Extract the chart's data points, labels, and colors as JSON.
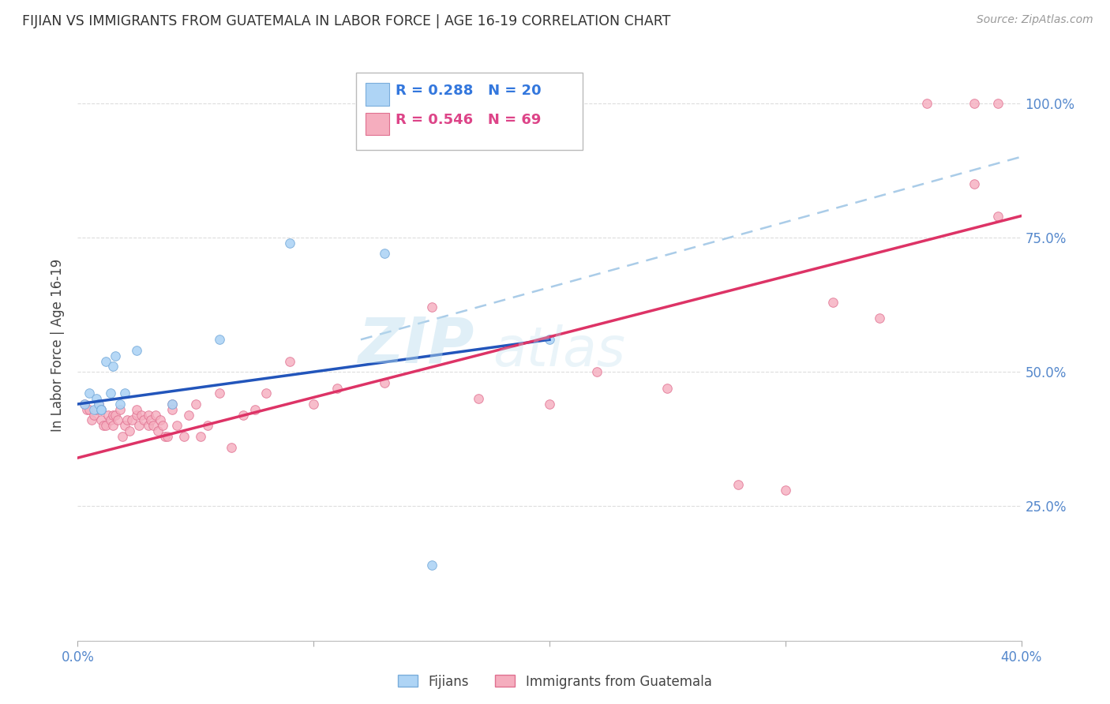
{
  "title": "FIJIAN VS IMMIGRANTS FROM GUATEMALA IN LABOR FORCE | AGE 16-19 CORRELATION CHART",
  "source": "Source: ZipAtlas.com",
  "ylabel": "In Labor Force | Age 16-19",
  "xmin": 0.0,
  "xmax": 0.4,
  "ymin": 0.0,
  "ymax": 1.1,
  "yticks": [
    0.0,
    0.25,
    0.5,
    0.75,
    1.0
  ],
  "ytick_labels": [
    "",
    "25.0%",
    "50.0%",
    "75.0%",
    "100.0%"
  ],
  "xticks": [
    0.0,
    0.1,
    0.2,
    0.3,
    0.4
  ],
  "xtick_labels": [
    "0.0%",
    "",
    "",
    "",
    "40.0%"
  ],
  "fijian_color": "#AED4F5",
  "guatemala_color": "#F5ADBE",
  "fijian_edge": "#7AADDB",
  "guatemala_edge": "#E07090",
  "regression_blue": "#2255BB",
  "regression_pink": "#DD3366",
  "dashed_blue": "#AACCE8",
  "R_fijian": 0.288,
  "N_fijian": 20,
  "R_guatemala": 0.546,
  "N_guatemala": 69,
  "fijians_x": [
    0.003,
    0.005,
    0.007,
    0.008,
    0.009,
    0.01,
    0.01,
    0.012,
    0.014,
    0.015,
    0.016,
    0.018,
    0.02,
    0.025,
    0.04,
    0.06,
    0.09,
    0.13,
    0.15,
    0.2
  ],
  "fijians_y": [
    0.44,
    0.46,
    0.43,
    0.45,
    0.44,
    0.43,
    0.43,
    0.52,
    0.46,
    0.51,
    0.53,
    0.44,
    0.46,
    0.54,
    0.44,
    0.56,
    0.74,
    0.72,
    0.14,
    0.56
  ],
  "guatemala_x": [
    0.003,
    0.004,
    0.005,
    0.006,
    0.007,
    0.008,
    0.009,
    0.01,
    0.01,
    0.011,
    0.012,
    0.013,
    0.014,
    0.015,
    0.015,
    0.016,
    0.017,
    0.018,
    0.019,
    0.02,
    0.021,
    0.022,
    0.023,
    0.025,
    0.025,
    0.026,
    0.027,
    0.028,
    0.03,
    0.03,
    0.031,
    0.032,
    0.033,
    0.034,
    0.035,
    0.036,
    0.037,
    0.038,
    0.04,
    0.04,
    0.042,
    0.045,
    0.047,
    0.05,
    0.052,
    0.055,
    0.06,
    0.065,
    0.07,
    0.075,
    0.08,
    0.09,
    0.1,
    0.11,
    0.13,
    0.15,
    0.17,
    0.2,
    0.22,
    0.25,
    0.28,
    0.3,
    0.32,
    0.34,
    0.36,
    0.38,
    0.38,
    0.39,
    0.39
  ],
  "guatemala_y": [
    0.44,
    0.43,
    0.43,
    0.41,
    0.42,
    0.43,
    0.44,
    0.41,
    0.43,
    0.4,
    0.4,
    0.42,
    0.41,
    0.4,
    0.42,
    0.42,
    0.41,
    0.43,
    0.38,
    0.4,
    0.41,
    0.39,
    0.41,
    0.42,
    0.43,
    0.4,
    0.42,
    0.41,
    0.4,
    0.42,
    0.41,
    0.4,
    0.42,
    0.39,
    0.41,
    0.4,
    0.38,
    0.38,
    0.44,
    0.43,
    0.4,
    0.38,
    0.42,
    0.44,
    0.38,
    0.4,
    0.46,
    0.36,
    0.42,
    0.43,
    0.46,
    0.52,
    0.44,
    0.47,
    0.48,
    0.62,
    0.45,
    0.44,
    0.5,
    0.47,
    0.29,
    0.28,
    0.63,
    0.6,
    1.0,
    1.0,
    0.85,
    1.0,
    0.79
  ],
  "blue_line_x": [
    0.0,
    0.2
  ],
  "blue_line_y": [
    0.44,
    0.56
  ],
  "pink_line_x": [
    0.0,
    0.4
  ],
  "pink_line_y": [
    0.34,
    0.79
  ],
  "dashed_line_x": [
    0.12,
    0.4
  ],
  "dashed_line_y": [
    0.56,
    0.9
  ],
  "watermark_zip": "ZIP",
  "watermark_atlas": "atlas",
  "background_color": "#FFFFFF",
  "grid_color": "#DDDDDD",
  "tick_color": "#5588CC",
  "marker_size": 70,
  "legend_R_color_blue": "#3377DD",
  "legend_R_color_pink": "#DD4488",
  "legend_N_color_blue": "#3377DD",
  "legend_N_color_pink": "#DD4488"
}
